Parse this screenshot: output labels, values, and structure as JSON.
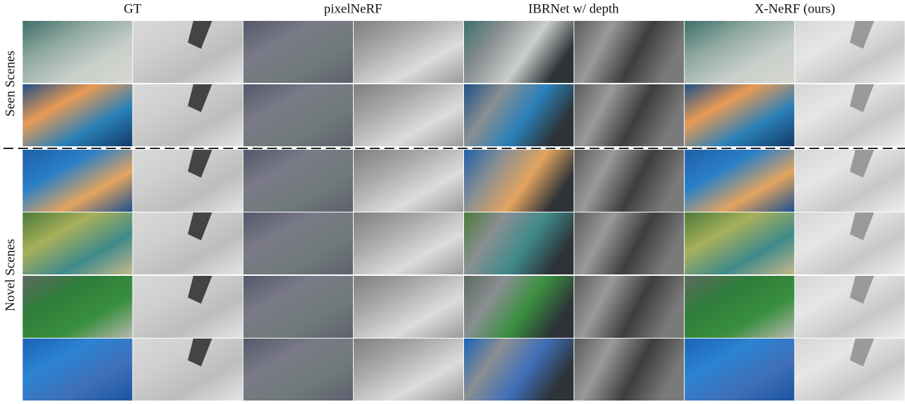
{
  "columns": [
    "GT",
    "pixelNeRF",
    "IBRNet w/ depth",
    "X-NeRF (ours)"
  ],
  "row_groups": [
    {
      "label": "Seen Scenes"
    },
    {
      "label": "Novel Scenes"
    }
  ]
}
